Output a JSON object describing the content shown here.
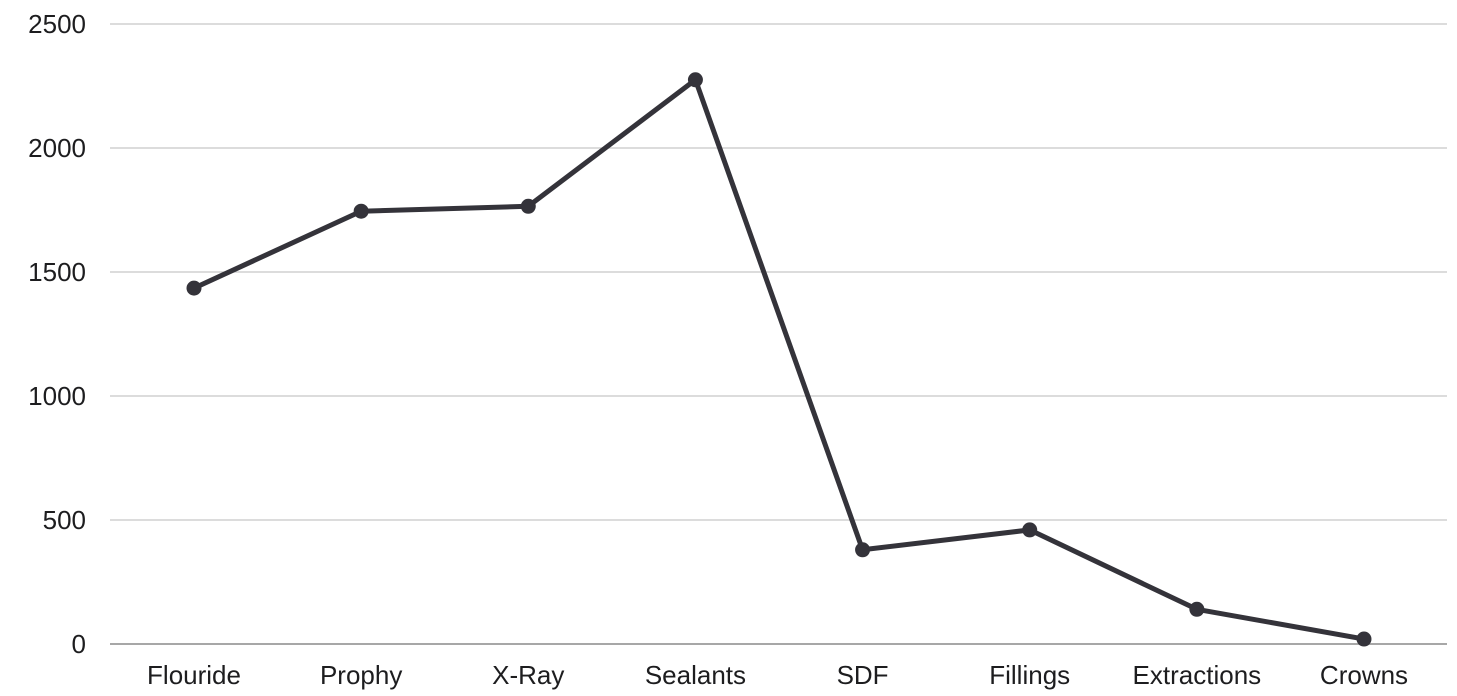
{
  "chart_data": {
    "type": "line",
    "title": "",
    "xlabel": "",
    "ylabel": "",
    "categories": [
      "Flouride",
      "Prophy",
      "X-Ray",
      "Sealants",
      "SDF",
      "Fillings",
      "Extractions",
      "Crowns"
    ],
    "series": [
      {
        "values": [
          1435,
          1745,
          1765,
          2275,
          380,
          460,
          140,
          20
        ]
      }
    ],
    "ylim": [
      0,
      2500
    ],
    "yticks": [
      0,
      500,
      1000,
      1500,
      2000,
      2500
    ],
    "grid": true,
    "legend": "none",
    "colors": {
      "line": "#34333a",
      "grid": "#c8c8c8",
      "axis": "#8a8a8a",
      "text": "#1d1d1f"
    }
  }
}
